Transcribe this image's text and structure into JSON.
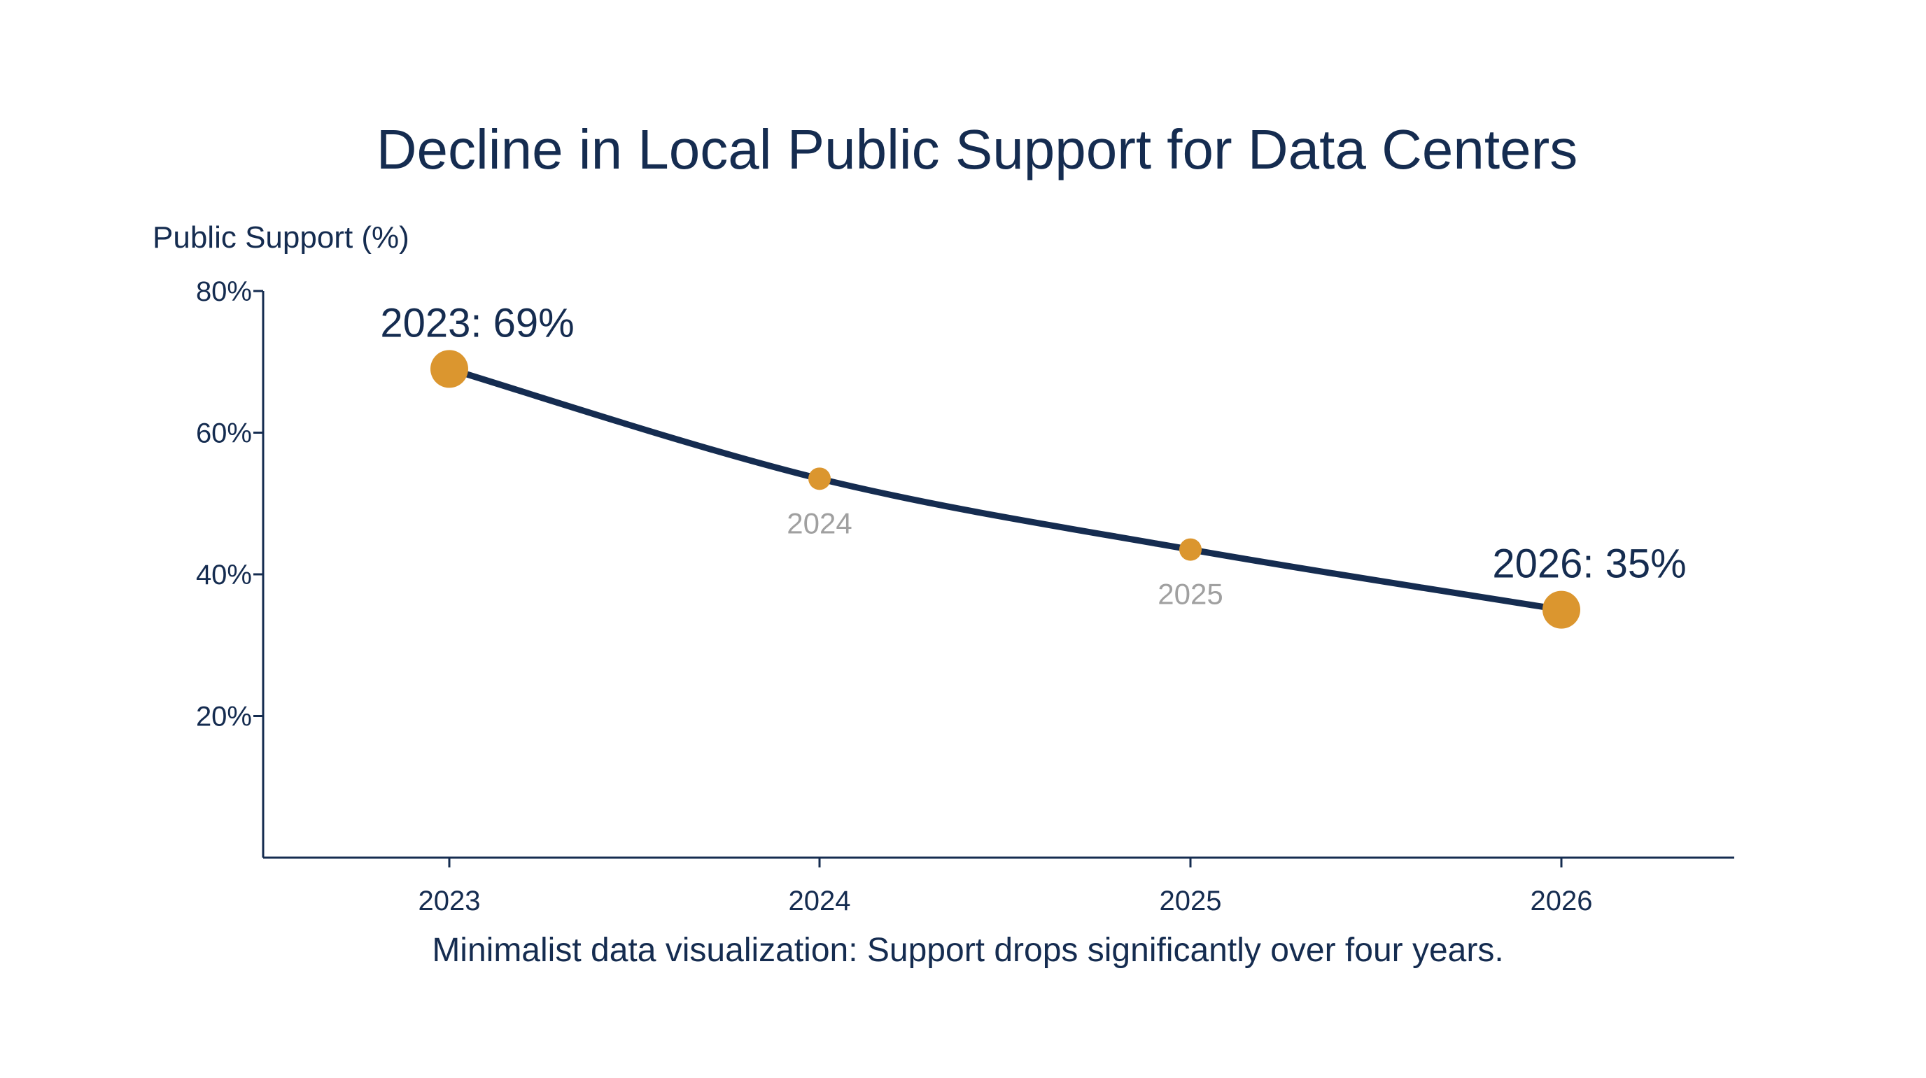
{
  "chart_data": {
    "type": "line",
    "title": "Decline in Local Public Support for Data Centers",
    "ylabel": "Public Support (%)",
    "xlabel": "",
    "caption": "Minimalist data visualization: Support drops significantly over four years.",
    "categories": [
      "2023",
      "2024",
      "2025",
      "2026"
    ],
    "values": [
      69,
      53.5,
      43.5,
      35
    ],
    "ylim": [
      0,
      80
    ],
    "y_ticks": [
      {
        "value": 20,
        "label": "20%"
      },
      {
        "value": 40,
        "label": "40%"
      },
      {
        "value": 60,
        "label": "60%"
      },
      {
        "value": 80,
        "label": "80%"
      }
    ],
    "point_annotations": [
      {
        "index": 0,
        "text": "2023: 69%",
        "style": "highlight",
        "position": "above"
      },
      {
        "index": 1,
        "text": "2024",
        "style": "muted",
        "position": "below"
      },
      {
        "index": 2,
        "text": "2025",
        "style": "muted",
        "position": "below"
      },
      {
        "index": 3,
        "text": "2026: 35%",
        "style": "highlight",
        "position": "above"
      }
    ],
    "grid": false,
    "legend": "none",
    "colors": {
      "line": "#152c50",
      "marker": "#db962f",
      "text": "#152c50",
      "muted_label": "#a0a0a0",
      "axis": "#152c50"
    }
  }
}
